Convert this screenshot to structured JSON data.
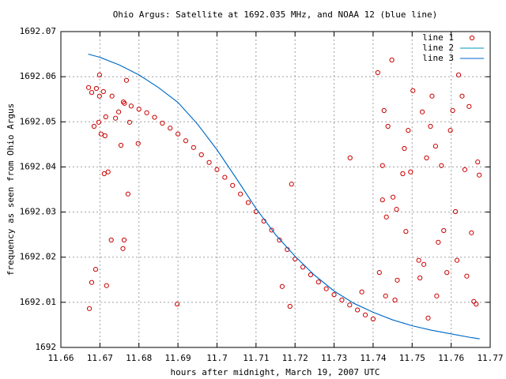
{
  "chart_data": {
    "type": "scatter",
    "title": "Ohio Argus: Satellite at 1692.035 MHz, and NOAA 12 (blue line)",
    "xlabel": "hours after midnight, March 19, 2007 UTC",
    "ylabel": "frequency as seen from Ohio Argus",
    "xlim": [
      11.66,
      11.77
    ],
    "ylim": [
      1692,
      1692.07
    ],
    "xticks": [
      11.66,
      11.67,
      11.68,
      11.69,
      11.7,
      11.71,
      11.72,
      11.73,
      11.74,
      11.75,
      11.76,
      11.77
    ],
    "yticks": [
      1692,
      1692.01,
      1692.02,
      1692.03,
      1692.04,
      1692.05,
      1692.06,
      1692.07
    ],
    "grid": true,
    "legend": "top-right",
    "series": [
      {
        "name": "line 1",
        "color": "#cc0000",
        "style": "points",
        "x": [
          11.676,
          11.678,
          11.68,
          11.682,
          11.684,
          11.686,
          11.688,
          11.69,
          11.692,
          11.694,
          11.696,
          11.698,
          11.7,
          11.702,
          11.704,
          11.706,
          11.708,
          11.71,
          11.712,
          11.714,
          11.716,
          11.718,
          11.72,
          11.722,
          11.724,
          11.726,
          11.728,
          11.73,
          11.732,
          11.734,
          11.736,
          11.738,
          11.74,
          11.6671,
          11.6679,
          11.6691,
          11.6699,
          11.6709,
          11.6673,
          11.6679,
          11.6689,
          11.6699,
          11.6697,
          11.6685,
          11.6703,
          11.6715,
          11.6711,
          11.6721,
          11.6713,
          11.6717,
          11.6729,
          11.6731,
          11.674,
          11.6748,
          11.6754,
          11.6762,
          11.6759,
          11.6763,
          11.6768,
          11.6772,
          11.6776,
          11.6798,
          11.6898,
          11.7191,
          11.7167,
          11.7187,
          11.7341,
          11.7371,
          11.7412,
          11.7428,
          11.7448,
          11.7438,
          11.7424,
          11.7424,
          11.7434,
          11.7451,
          11.746,
          11.7416,
          11.7432,
          11.7462,
          11.7476,
          11.748,
          11.7484,
          11.749,
          11.7496,
          11.7502,
          11.7517,
          11.752,
          11.7526,
          11.7537,
          11.7547,
          11.7551,
          11.756,
          11.7563,
          11.7567,
          11.7575,
          11.7581,
          11.7589,
          11.7598,
          11.7604,
          11.7611,
          11.7615,
          11.7619,
          11.7628,
          11.7635,
          11.764,
          11.7646,
          11.7652,
          11.7658,
          11.7664,
          11.7668,
          11.7672,
          11.7541,
          11.7456,
          11.753
        ],
        "values": [
          1692.0544,
          1692.0535,
          1692.0528,
          1692.052,
          1692.051,
          1692.0497,
          1692.0486,
          1692.0473,
          1692.0458,
          1692.0443,
          1692.0427,
          1692.041,
          1692.0394,
          1692.0377,
          1692.0359,
          1692.034,
          1692.0321,
          1692.0301,
          1692.028,
          1692.026,
          1692.0238,
          1692.0217,
          1692.0196,
          1692.0178,
          1692.0161,
          1692.0145,
          1692.013,
          1692.0117,
          1692.0105,
          1692.0094,
          1692.0083,
          1692.0072,
          1692.0063,
          1692.0576,
          1692.0565,
          1692.0574,
          1692.0557,
          1692.0567,
          1692.0086,
          1692.0144,
          1692.0173,
          1692.0604,
          1692.0499,
          1692.049,
          1692.0473,
          1692.0511,
          1692.0385,
          1692.0389,
          1692.0469,
          1692.0137,
          1692.0238,
          1692.0557,
          1692.0508,
          1692.0522,
          1692.0448,
          1692.0238,
          1692.0219,
          1692.0541,
          1692.0592,
          1692.034,
          1692.0499,
          1692.0452,
          1692.0096,
          1692.0362,
          1692.0135,
          1692.0091,
          1692.042,
          1692.0123,
          1692.0609,
          1692.0525,
          1692.0637,
          1692.049,
          1692.0403,
          1692.0327,
          1692.0289,
          1692.0333,
          1692.0306,
          1692.0166,
          1692.0114,
          1692.0149,
          1692.0385,
          1692.0441,
          1692.0257,
          1692.0481,
          1692.0389,
          1692.0569,
          1692.0193,
          1692.0154,
          1692.0522,
          1692.042,
          1692.049,
          1692.0557,
          1692.0446,
          1692.0114,
          1692.0233,
          1692.0403,
          1692.0259,
          1692.0166,
          1692.0481,
          1692.0525,
          1692.0301,
          1692.0193,
          1692.0604,
          1692.0557,
          1692.0394,
          1692.0158,
          1692.0534,
          1692.0254,
          1692.0102,
          1692.0096,
          1692.0411,
          1692.0382,
          1692.0065,
          1692.0105,
          1692.0184
        ]
      },
      {
        "name": "line 2",
        "color": "#0090b8",
        "style": "lines",
        "x": [
          11.667,
          11.67,
          11.675,
          11.68,
          11.685,
          11.69,
          11.695,
          11.7,
          11.705,
          11.71,
          11.715,
          11.72,
          11.725,
          11.73,
          11.735,
          11.74,
          11.745,
          11.75,
          11.755,
          11.76,
          11.765,
          11.7673
        ],
        "values": [
          1692.065,
          1692.0643,
          1692.0626,
          1692.0604,
          1692.0576,
          1692.0543,
          1692.0495,
          1692.0438,
          1692.0374,
          1692.0308,
          1692.025,
          1692.0202,
          1692.016,
          1692.0125,
          1692.0098,
          1692.0078,
          1692.0061,
          1692.0048,
          1692.0038,
          1692.003,
          1692.0022,
          1692.0019
        ]
      },
      {
        "name": "line 3",
        "color": "#0066cc",
        "style": "lines",
        "x": [
          11.667,
          11.67,
          11.675,
          11.68,
          11.685,
          11.69,
          11.695,
          11.7,
          11.705,
          11.71,
          11.715,
          11.72,
          11.725,
          11.73,
          11.735,
          11.74,
          11.745,
          11.75,
          11.755,
          11.76,
          11.765,
          11.7673
        ],
        "values": [
          1692.065,
          1692.0643,
          1692.0626,
          1692.0604,
          1692.0576,
          1692.0543,
          1692.0495,
          1692.0438,
          1692.0374,
          1692.0308,
          1692.025,
          1692.0202,
          1692.016,
          1692.0125,
          1692.0098,
          1692.0078,
          1692.0061,
          1692.0048,
          1692.0038,
          1692.003,
          1692.0022,
          1692.0019
        ]
      }
    ]
  }
}
